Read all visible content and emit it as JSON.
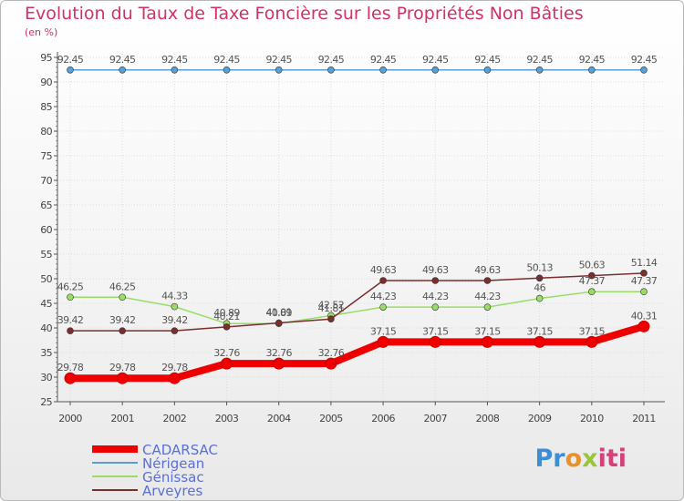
{
  "chart_data": {
    "type": "line",
    "title": "Evolution du Taux de Taxe Foncière sur les Propriétés Non Bâties",
    "subtitle": "(en %)",
    "categories": [
      "2000",
      "2001",
      "2002",
      "2003",
      "2004",
      "2005",
      "2006",
      "2007",
      "2008",
      "2009",
      "2010",
      "2011"
    ],
    "ylim": [
      25,
      95
    ],
    "yticks": [
      25,
      30,
      35,
      40,
      45,
      50,
      55,
      60,
      65,
      70,
      75,
      80,
      85,
      90,
      95
    ],
    "series": [
      {
        "name": "CADARSAC",
        "color": "#ee0000",
        "labels": [
          "29.78",
          "29.78",
          "29.78",
          "32.76",
          "32.76",
          "32.76",
          "37.15",
          "37.15",
          "37.15",
          "37.15",
          "37.15",
          "40.31"
        ],
        "values": [
          29.78,
          29.78,
          29.78,
          32.76,
          32.76,
          32.76,
          37.15,
          37.15,
          37.15,
          37.15,
          37.15,
          40.31
        ]
      },
      {
        "name": "Nérigean",
        "color": "#5a9fd4",
        "labels": [
          "92.45",
          "92.45",
          "92.45",
          "92.45",
          "92.45",
          "92.45",
          "92.45",
          "92.45",
          "92.45",
          "92.45",
          "92.45",
          "92.45"
        ],
        "values": [
          92.45,
          92.45,
          92.45,
          92.45,
          92.45,
          92.45,
          92.45,
          92.45,
          92.45,
          92.45,
          92.45,
          92.45
        ]
      },
      {
        "name": "Génissac",
        "color": "#99dd66",
        "labels": [
          "46.25",
          "46.25",
          "44.33",
          "40.89",
          "40.89",
          "42.52",
          "44.23",
          "44.23",
          "44.23",
          "46",
          "47.37",
          "47.37"
        ],
        "values": [
          46.25,
          46.25,
          44.33,
          40.89,
          40.89,
          42.52,
          44.23,
          44.23,
          44.23,
          46,
          47.37,
          47.37
        ]
      },
      {
        "name": "Arveyres",
        "color": "#7a2e2e",
        "labels": [
          "39.42",
          "39.42",
          "39.42",
          "40.21",
          "41.01",
          "41.81",
          "49.63",
          "49.63",
          "49.63",
          "50.13",
          "50.63",
          "51.14"
        ],
        "values": [
          39.42,
          39.42,
          39.42,
          40.21,
          41.01,
          41.81,
          49.63,
          49.63,
          49.63,
          50.13,
          50.63,
          51.14
        ]
      }
    ]
  },
  "legend": {
    "items": [
      "CADARSAC",
      "Nérigean",
      "Génissac",
      "Arveyres"
    ]
  },
  "logo": {
    "part1": "Pr",
    "part2": "o",
    "part3": "x",
    "part4": "iti"
  },
  "colors": {
    "title": "#d3306a",
    "grid": "#dddddd",
    "axis": "#555555"
  }
}
